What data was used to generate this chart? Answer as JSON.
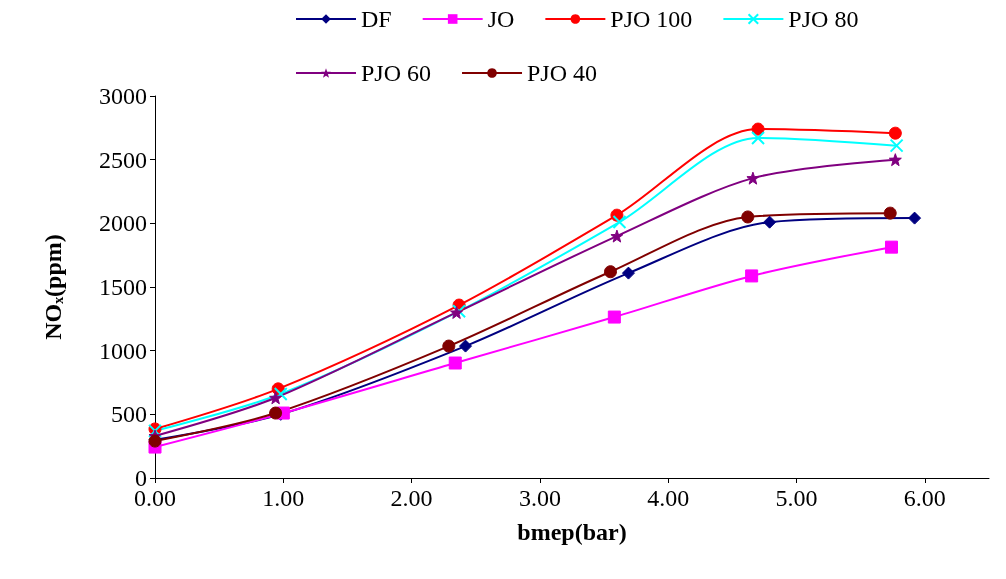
{
  "chart_data": {
    "type": "line",
    "xlabel": "bmep(bar)",
    "ylabel": "NOₓ(ppm)",
    "xlim": [
      0,
      6.5
    ],
    "xticks": [
      {
        "value": 0,
        "label": "0.00"
      },
      {
        "value": 1,
        "label": "1.00"
      },
      {
        "value": 2,
        "label": "2.00"
      },
      {
        "value": 3,
        "label": "3.00"
      },
      {
        "value": 4,
        "label": "4.00"
      },
      {
        "value": 5,
        "label": "5.00"
      },
      {
        "value": 6,
        "label": "6.00"
      }
    ],
    "ylim": [
      0,
      3000
    ],
    "yticks": [
      0,
      500,
      1000,
      1500,
      2000,
      2500,
      3000
    ],
    "grid": false,
    "legend": "top",
    "series": [
      {
        "name": "DF",
        "color": "#000080",
        "marker": "diamond",
        "x": [
          0,
          0.98,
          2.42,
          3.69,
          4.79,
          5.92
        ],
        "values": [
          300,
          500,
          1036,
          1609,
          2009,
          2041
        ]
      },
      {
        "name": "JO",
        "color": "#ff00ff",
        "marker": "square",
        "x": [
          0,
          1.0,
          2.34,
          3.58,
          4.65,
          5.74
        ],
        "values": [
          243,
          510,
          903,
          1264,
          1587,
          1813
        ]
      },
      {
        "name": "PJO 100",
        "color": "#ff0000",
        "marker": "circle",
        "x": [
          0,
          0.96,
          2.37,
          3.6,
          4.7,
          5.77
        ],
        "values": [
          385,
          700,
          1358,
          2064,
          2740,
          2708
        ]
      },
      {
        "name": "PJO 80",
        "color": "#00ffff",
        "marker": "cross",
        "x": [
          0,
          0.98,
          2.37,
          3.62,
          4.7,
          5.78
        ],
        "values": [
          370,
          660,
          1310,
          2010,
          2670,
          2610
        ]
      },
      {
        "name": "PJO 60",
        "color": "#800080",
        "marker": "star",
        "x": [
          0,
          0.94,
          2.35,
          3.6,
          4.66,
          5.77
        ],
        "values": [
          330,
          630,
          1300,
          1900,
          2355,
          2500
        ]
      },
      {
        "name": "PJO 40",
        "color": "#800000",
        "marker": "circle",
        "x": [
          0,
          0.94,
          2.29,
          3.55,
          4.62,
          5.73
        ],
        "values": [
          290,
          510,
          1036,
          1620,
          2050,
          2080
        ]
      }
    ]
  }
}
